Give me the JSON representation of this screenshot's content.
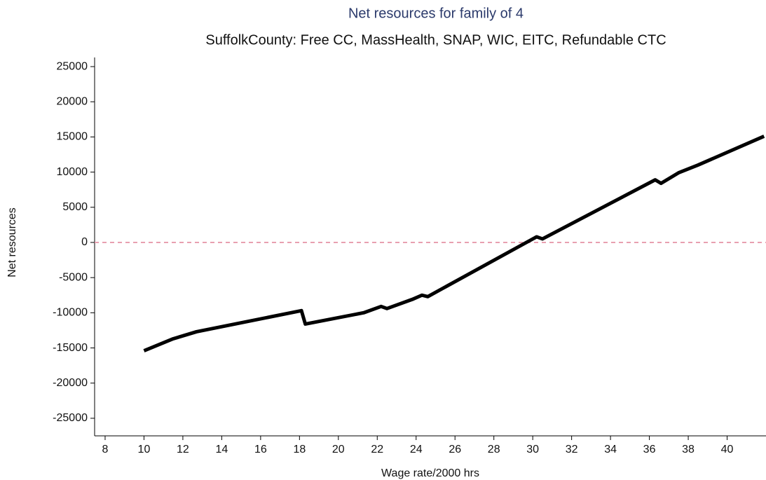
{
  "chart_data": {
    "type": "line",
    "title": "Net resources for family of 4",
    "subtitle": "SuffolkCounty: Free CC, MassHealth, SNAP, WIC, EITC, Refundable CTC",
    "x_label": "Wage rate/2000 hrs",
    "y_label": "Net resources",
    "title_color": "#2b3a6b",
    "x": [
      10,
      11.5,
      12.7,
      18.1,
      18.3,
      21.3,
      22.2,
      22.5,
      23.8,
      24.3,
      24.6,
      30.2,
      30.5,
      36.3,
      36.6,
      37.5,
      38.5,
      41.9
    ],
    "series": [
      {
        "name": "Net resources",
        "color": "#000000",
        "values": [
          -15400,
          -13700,
          -12700,
          -9700,
          -11600,
          -10000,
          -9100,
          -9400,
          -8100,
          -7500,
          -7700,
          800,
          500,
          8900,
          8400,
          9900,
          11000,
          15100
        ]
      }
    ],
    "reference_line": {
      "value": 0,
      "color": "#e8a0b0"
    },
    "xlim": [
      7.46,
      42
    ],
    "ylim": [
      -27500,
      26300
    ],
    "xticks": [
      8,
      10,
      12,
      14,
      16,
      18,
      20,
      22,
      24,
      26,
      28,
      30,
      32,
      34,
      36,
      38,
      40
    ],
    "yticks": [
      -25000,
      -20000,
      -15000,
      -10000,
      -5000,
      0,
      5000,
      10000,
      15000,
      20000,
      25000
    ],
    "grid": false
  }
}
